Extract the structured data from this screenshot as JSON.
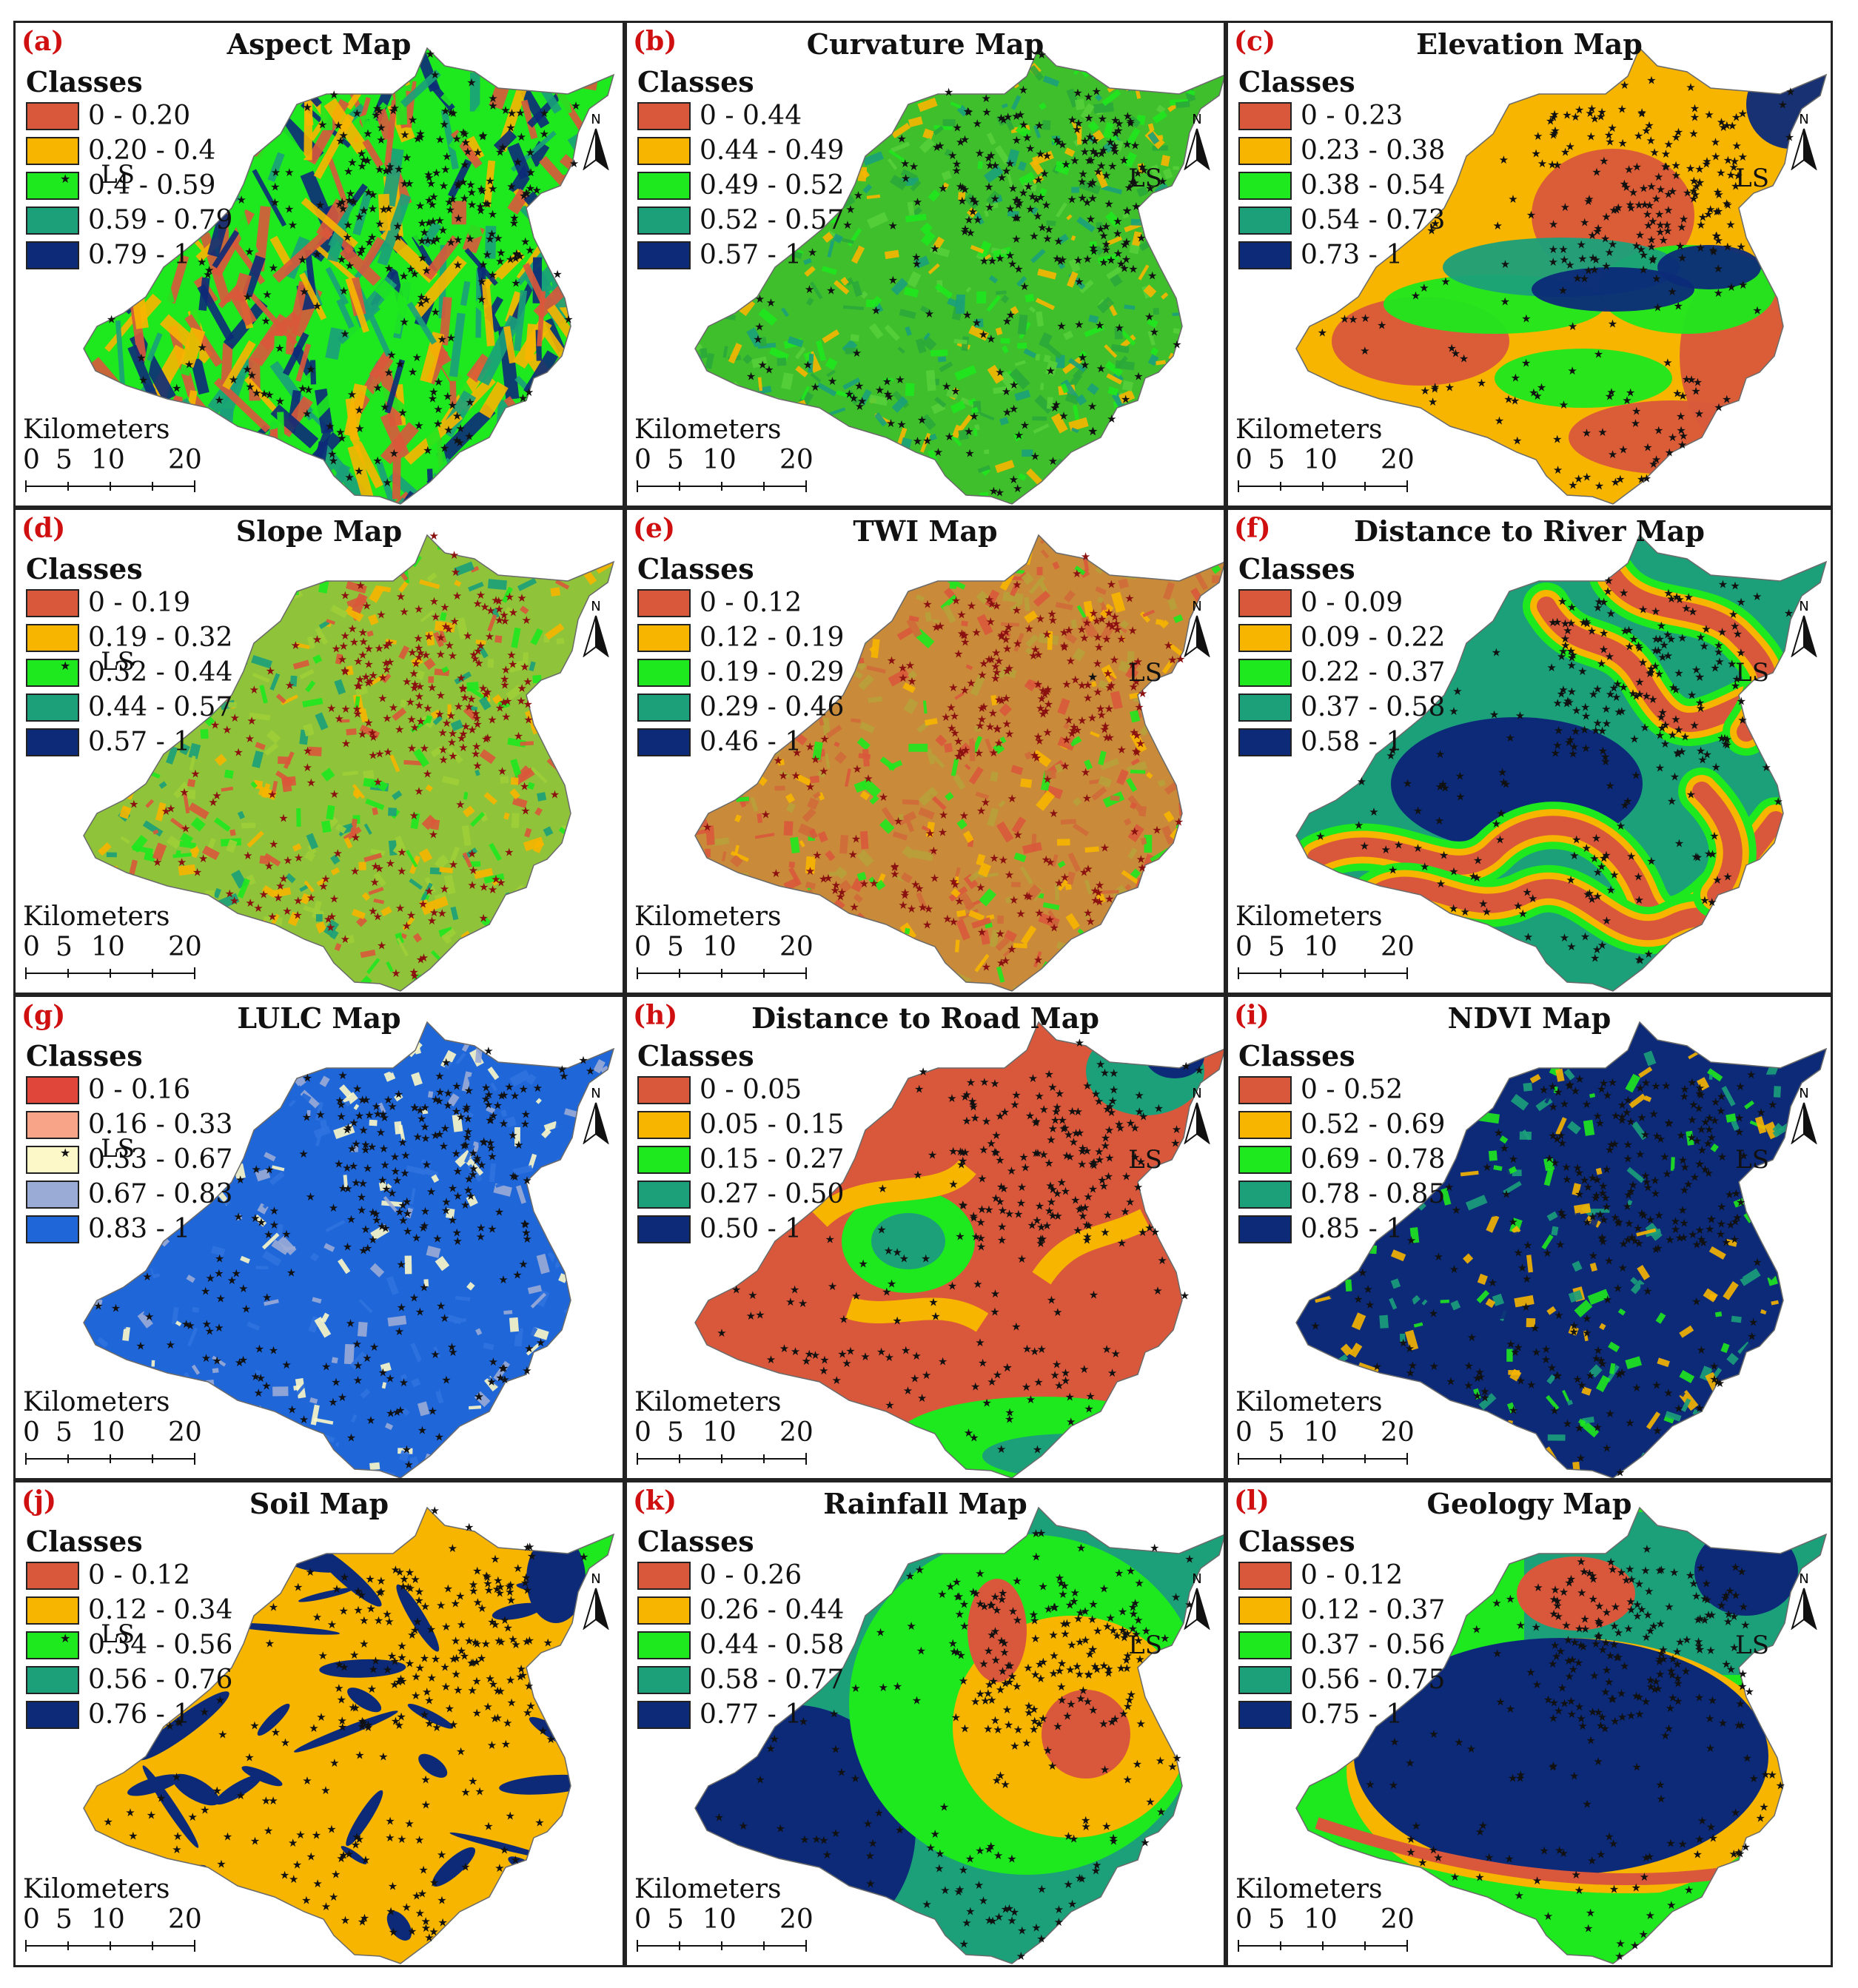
{
  "figure": {
    "common": {
      "classes_label": "Classes",
      "ls_label": "LS",
      "kilometers_label": "Kilometers",
      "scale_ticks": [
        "0",
        "5",
        "10",
        "20"
      ],
      "north_label": "N"
    },
    "panels": [
      {
        "id": "a",
        "label": "(a)",
        "title": "Aspect Map",
        "pattern": "aspect",
        "star_color": "#111111",
        "classes": [
          {
            "range": "0 - 0.20",
            "color": "#d9583b"
          },
          {
            "range": "0.20 - 0.4",
            "color": "#f7b500"
          },
          {
            "range": "0.4 - 0.59",
            "color": "#1ee81e"
          },
          {
            "range": "0.59 - 0.79",
            "color": "#1ba07a"
          },
          {
            "range": "0.79 - 1",
            "color": "#0c2a78"
          }
        ]
      },
      {
        "id": "b",
        "label": "(b)",
        "title": "Curvature Map",
        "pattern": "curvature",
        "star_color": "#111111",
        "classes": [
          {
            "range": "0 - 0.44",
            "color": "#d9583b"
          },
          {
            "range": "0.44 - 0.49",
            "color": "#f7b500"
          },
          {
            "range": "0.49 - 0.52",
            "color": "#1ee81e"
          },
          {
            "range": "0.52 - 0.57",
            "color": "#1ba07a"
          },
          {
            "range": "0.57 - 1",
            "color": "#0c2a78"
          }
        ]
      },
      {
        "id": "c",
        "label": "(c)",
        "title": "Elevation Map",
        "pattern": "elevation",
        "star_color": "#111111",
        "classes": [
          {
            "range": "0 - 0.23",
            "color": "#d9583b"
          },
          {
            "range": "0.23 - 0.38",
            "color": "#f7b500"
          },
          {
            "range": "0.38 - 0.54",
            "color": "#1ee81e"
          },
          {
            "range": "0.54 - 0.73",
            "color": "#1ba07a"
          },
          {
            "range": "0.73 - 1",
            "color": "#0c2a78"
          }
        ]
      },
      {
        "id": "d",
        "label": "(d)",
        "title": "Slope Map",
        "pattern": "slope",
        "star_color": "#8b1010",
        "classes": [
          {
            "range": "0 - 0.19",
            "color": "#d9583b"
          },
          {
            "range": "0.19 - 0.32",
            "color": "#f7b500"
          },
          {
            "range": "0.32 - 0.44",
            "color": "#1ee81e"
          },
          {
            "range": "0.44 - 0.57",
            "color": "#1ba07a"
          },
          {
            "range": "0.57 - 1",
            "color": "#0c2a78"
          }
        ]
      },
      {
        "id": "e",
        "label": "(e)",
        "title": "TWI Map",
        "pattern": "twi",
        "star_color": "#8b1010",
        "classes": [
          {
            "range": "0 - 0.12",
            "color": "#d9583b"
          },
          {
            "range": "0.12 - 0.19",
            "color": "#f7b500"
          },
          {
            "range": "0.19 - 0.29",
            "color": "#1ee81e"
          },
          {
            "range": "0.29 - 0.46",
            "color": "#1ba07a"
          },
          {
            "range": "0.46 - 1",
            "color": "#0c2a78"
          }
        ]
      },
      {
        "id": "f",
        "label": "(f)",
        "title": "Distance to River Map",
        "pattern": "river",
        "star_color": "#111111",
        "classes": [
          {
            "range": "0 - 0.09",
            "color": "#d9583b"
          },
          {
            "range": "0.09 - 0.22",
            "color": "#f7b500"
          },
          {
            "range": "0.22 - 0.37",
            "color": "#1ee81e"
          },
          {
            "range": "0.37 - 0.58",
            "color": "#1ba07a"
          },
          {
            "range": "0.58 - 1",
            "color": "#0c2a78"
          }
        ]
      },
      {
        "id": "g",
        "label": "(g)",
        "title": "LULC Map",
        "pattern": "lulc",
        "star_color": "#111111",
        "classes": [
          {
            "range": "0 - 0.16",
            "color": "#e0473a"
          },
          {
            "range": "0.16 - 0.33",
            "color": "#f7a488"
          },
          {
            "range": "0.33 - 0.67",
            "color": "#fcf8c8"
          },
          {
            "range": "0.67 - 0.83",
            "color": "#9aabd6"
          },
          {
            "range": "0.83 - 1",
            "color": "#1f66d8"
          }
        ]
      },
      {
        "id": "h",
        "label": "(h)",
        "title": "Distance to Road Map",
        "pattern": "road",
        "star_color": "#111111",
        "classes": [
          {
            "range": "0 - 0.05",
            "color": "#d9583b"
          },
          {
            "range": "0.05 - 0.15",
            "color": "#f7b500"
          },
          {
            "range": "0.15 - 0.27",
            "color": "#1ee81e"
          },
          {
            "range": "0.27 - 0.50",
            "color": "#1ba07a"
          },
          {
            "range": "0.50 - 1",
            "color": "#0c2a78"
          }
        ]
      },
      {
        "id": "i",
        "label": "(i)",
        "title": "NDVI Map",
        "pattern": "ndvi",
        "star_color": "#111111",
        "classes": [
          {
            "range": "0 - 0.52",
            "color": "#d9583b"
          },
          {
            "range": "0.52 - 0.69",
            "color": "#f7b500"
          },
          {
            "range": "0.69 - 0.78",
            "color": "#1ee81e"
          },
          {
            "range": "0.78 - 0.85",
            "color": "#1ba07a"
          },
          {
            "range": "0.85 - 1",
            "color": "#0c2a78"
          }
        ]
      },
      {
        "id": "j",
        "label": "(j)",
        "title": "Soil Map",
        "pattern": "soil",
        "star_color": "#111111",
        "classes": [
          {
            "range": "0 - 0.12",
            "color": "#d9583b"
          },
          {
            "range": "0.12 - 0.34",
            "color": "#f7b500"
          },
          {
            "range": "0.34 - 0.56",
            "color": "#1ee81e"
          },
          {
            "range": "0.56 - 0.76",
            "color": "#1ba07a"
          },
          {
            "range": "0.76 - 1",
            "color": "#0c2a78"
          }
        ]
      },
      {
        "id": "k",
        "label": "(k)",
        "title": "Rainfall Map",
        "pattern": "rainfall",
        "star_color": "#111111",
        "classes": [
          {
            "range": "0 - 0.26",
            "color": "#d9583b"
          },
          {
            "range": "0.26 - 0.44",
            "color": "#f7b500"
          },
          {
            "range": "0.44 - 0.58",
            "color": "#1ee81e"
          },
          {
            "range": "0.58 - 0.77",
            "color": "#1ba07a"
          },
          {
            "range": "0.77 - 1",
            "color": "#0c2a78"
          }
        ]
      },
      {
        "id": "l",
        "label": "(l)",
        "title": "Geology Map",
        "pattern": "geology",
        "star_color": "#111111",
        "classes": [
          {
            "range": "0 - 0.12",
            "color": "#d9583b"
          },
          {
            "range": "0.12 - 0.37",
            "color": "#f7b500"
          },
          {
            "range": "0.37 - 0.56",
            "color": "#1ee81e"
          },
          {
            "range": "0.56 - 0.75",
            "color": "#1ba07a"
          },
          {
            "range": "0.75 - 1",
            "color": "#0c2a78"
          }
        ]
      }
    ]
  }
}
